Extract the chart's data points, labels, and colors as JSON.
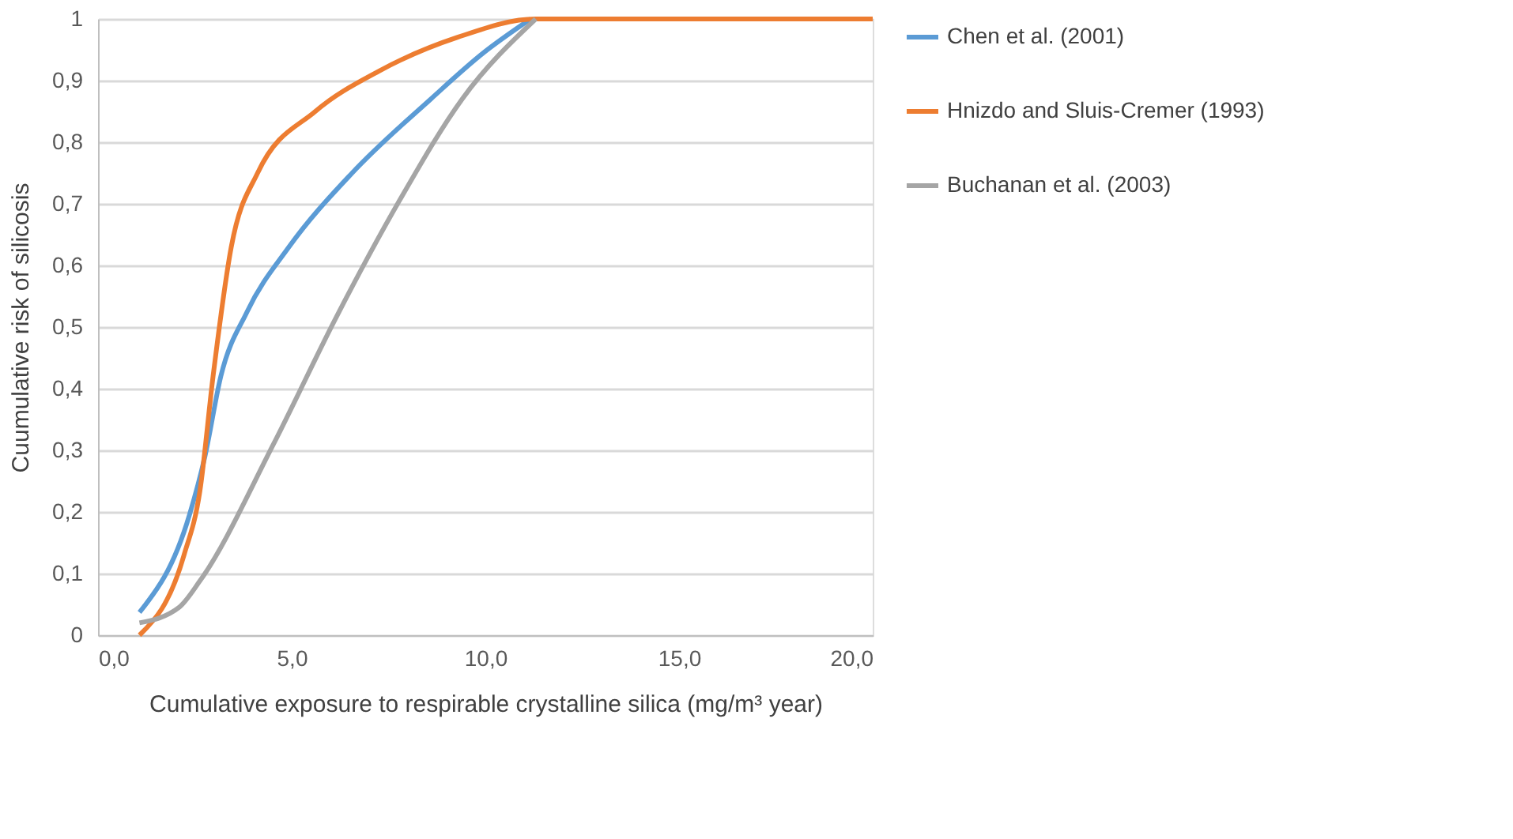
{
  "chart_data": {
    "type": "line",
    "xlabel": "Cumulative exposure to respirable crystalline silica (mg/m³ year)",
    "ylabel": "Cuumulative risk of silicosis",
    "xlim": [
      0,
      20
    ],
    "xticks": [
      {
        "value": 0,
        "label": "0,0"
      },
      {
        "value": 5,
        "label": "5,0"
      },
      {
        "value": 10,
        "label": "10,0"
      },
      {
        "value": 15,
        "label": "15,0"
      },
      {
        "value": 20,
        "label": "20,0"
      }
    ],
    "ylim": [
      0,
      1
    ],
    "yticks": [
      0,
      {
        "value": 0.1,
        "label": "0,1"
      },
      {
        "value": 0.2,
        "label": "0,2"
      },
      {
        "value": 0.3,
        "label": "0,3"
      },
      {
        "value": 0.4,
        "label": "0,4"
      },
      {
        "value": 0.5,
        "label": "0,5"
      },
      {
        "value": 0.6,
        "label": "0,6"
      },
      {
        "value": 0.7,
        "label": "0,7"
      },
      {
        "value": 0.8,
        "label": "0,8"
      },
      {
        "value": 0.9,
        "label": "0,9"
      },
      1
    ],
    "grid": "y",
    "legend": "right",
    "marker": "none",
    "line_style": "solid",
    "series": [
      {
        "name": "Chen et al. (2001)",
        "color": "#5b9bd5",
        "x": [
          1.07,
          2.36,
          2.76,
          3.17,
          3.85,
          4.93,
          6.56,
          8.59,
          9.95,
          11.17
        ],
        "values": [
          0.037,
          0.195,
          0.29,
          0.42,
          0.525,
          0.63,
          0.75,
          0.87,
          0.945,
          1.0
        ]
      },
      {
        "name": "Hnizdo and Sluis-Cremer (1993)",
        "color": "#ed7d31",
        "x": [
          1.07,
          2.22,
          2.63,
          2.97,
          3.44,
          4.12,
          5.61,
          7.24,
          9.27,
          11.3,
          12.2,
          20
        ],
        "values": [
          0,
          0.13,
          0.234,
          0.42,
          0.63,
          0.75,
          0.85,
          0.915,
          0.97,
          1.0,
          1.0,
          1.0
        ]
      },
      {
        "name": "Buchanan et al. (2003)",
        "color": "#a5a5a5",
        "x": [
          1.07,
          2.09,
          2.63,
          4.53,
          6.15,
          7.78,
          9.4,
          11.3
        ],
        "values": [
          0.02,
          0.045,
          0.088,
          0.31,
          0.516,
          0.705,
          0.87,
          1.0
        ]
      }
    ]
  }
}
